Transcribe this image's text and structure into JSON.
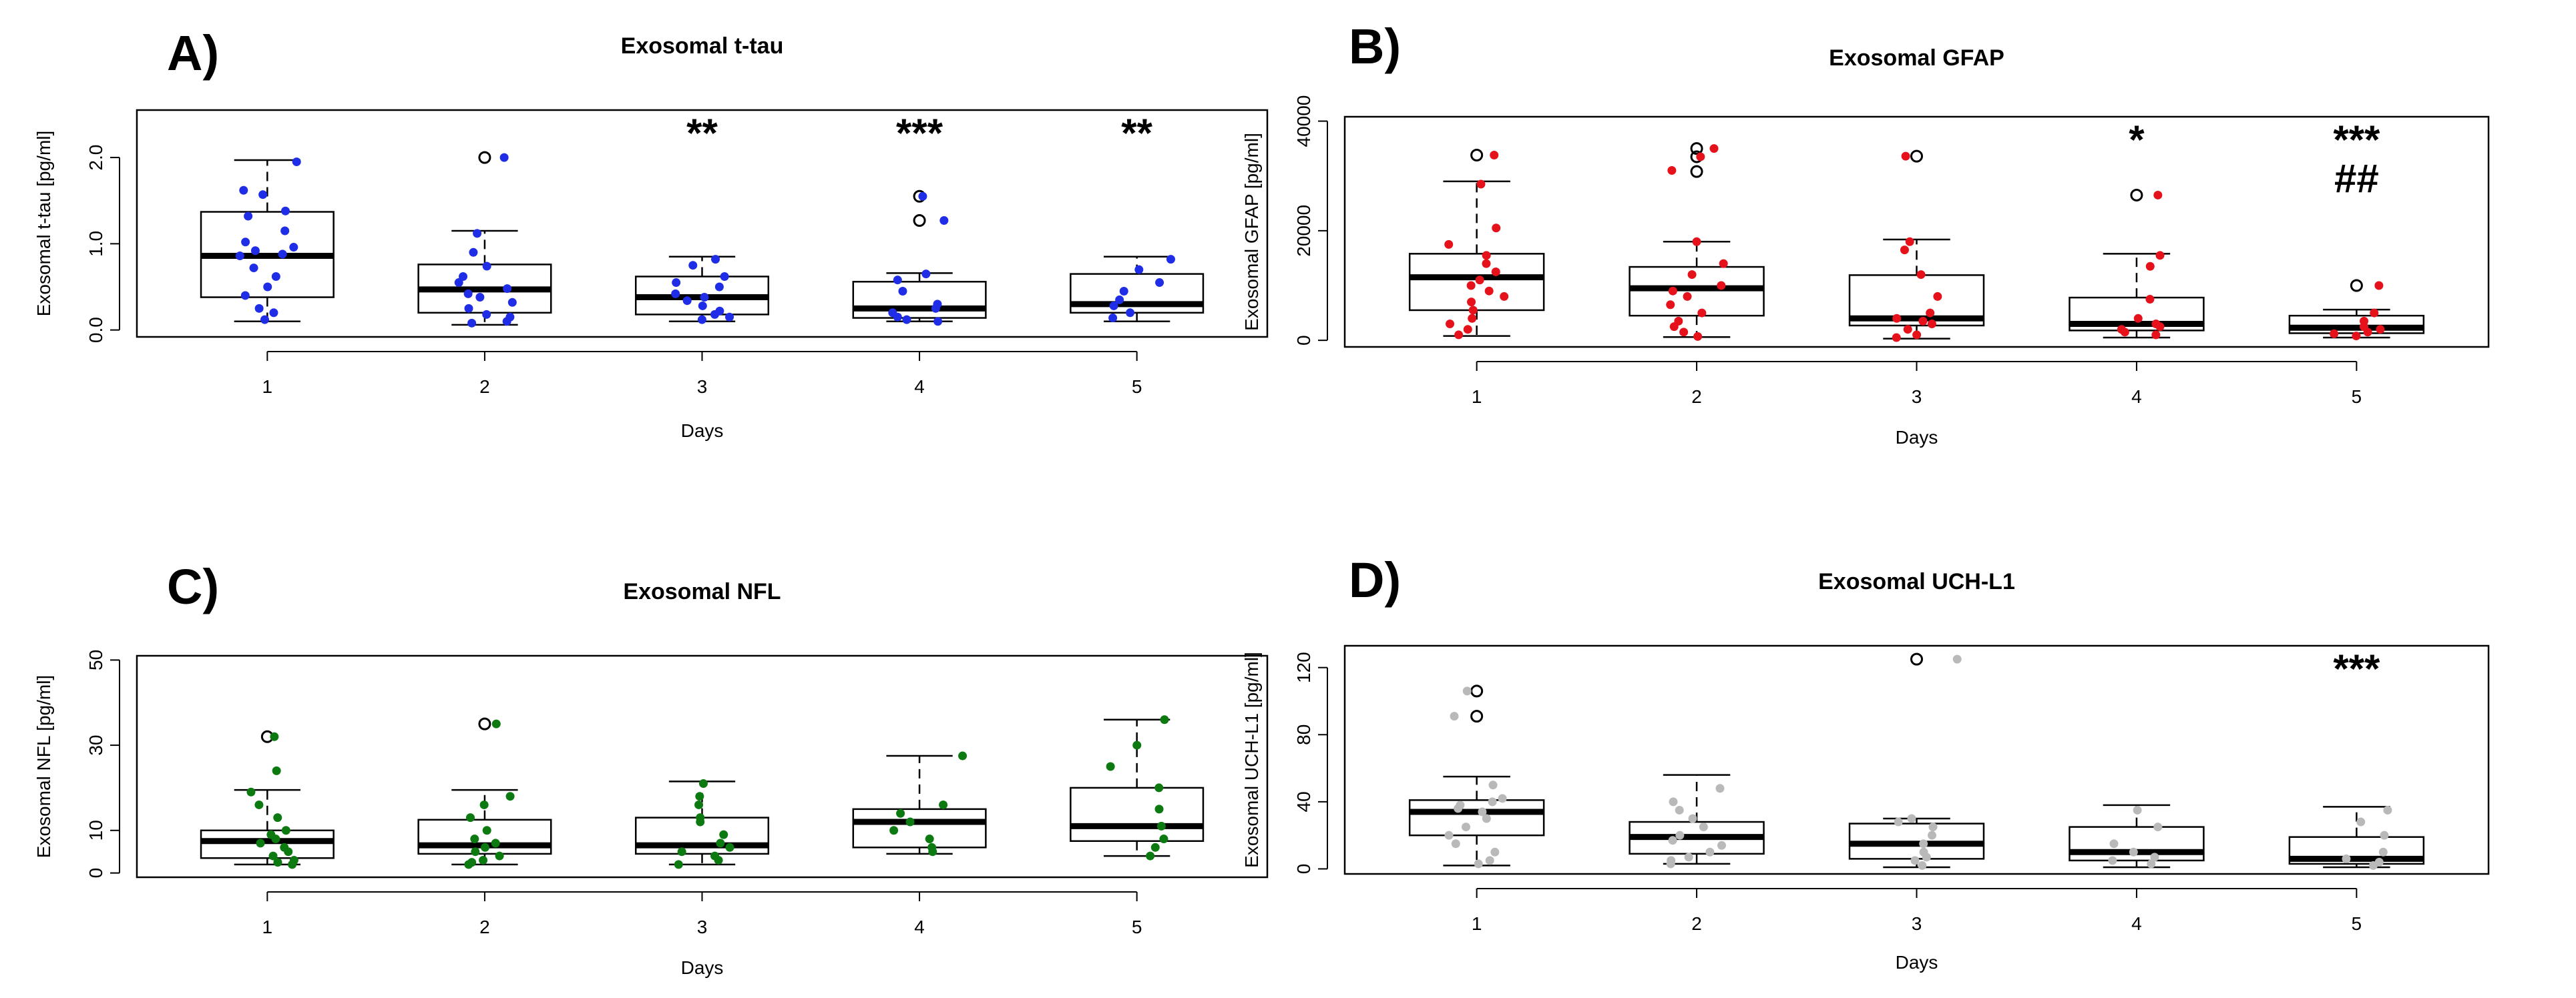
{
  "chart_data": [
    {
      "type": "box",
      "panel_label": "A)",
      "title": "Exosomal t-tau",
      "xlabel": "Days",
      "ylabel": "Exosomal t-tau [pg/ml]",
      "categories": [
        "1",
        "2",
        "3",
        "4",
        "5"
      ],
      "ylim": [
        -0.08,
        2.55
      ],
      "yticks": [
        0,
        1,
        2
      ],
      "ytick_labels": [
        "0.0",
        "1.0",
        "2.0"
      ],
      "point_color": "#1f2ee6",
      "boxes": [
        {
          "whisker_low": 0.1,
          "q1": 0.38,
          "median": 0.86,
          "q3": 1.37,
          "whisker_high": 1.97,
          "outliers": []
        },
        {
          "whisker_low": 0.06,
          "q1": 0.2,
          "median": 0.47,
          "q3": 0.76,
          "whisker_high": 1.15,
          "outliers": [
            2.0
          ]
        },
        {
          "whisker_low": 0.1,
          "q1": 0.18,
          "median": 0.38,
          "q3": 0.62,
          "whisker_high": 0.85,
          "outliers": []
        },
        {
          "whisker_low": 0.1,
          "q1": 0.14,
          "median": 0.25,
          "q3": 0.56,
          "whisker_high": 0.66,
          "outliers": [
            1.27,
            1.55
          ]
        },
        {
          "whisker_low": 0.1,
          "q1": 0.2,
          "median": 0.3,
          "q3": 0.65,
          "whisker_high": 0.85,
          "outliers": []
        }
      ],
      "points": [
        [
          1.95,
          1.62,
          1.57,
          1.38,
          1.32,
          1.15,
          1.02,
          0.96,
          0.92,
          0.88,
          0.86,
          0.72,
          0.62,
          0.5,
          0.4,
          0.25,
          0.2,
          0.12
        ],
        [
          2.0,
          1.12,
          0.9,
          0.74,
          0.62,
          0.55,
          0.48,
          0.42,
          0.38,
          0.32,
          0.25,
          0.18,
          0.15,
          0.1,
          0.08
        ],
        [
          0.82,
          0.75,
          0.62,
          0.55,
          0.5,
          0.42,
          0.38,
          0.34,
          0.28,
          0.22,
          0.18,
          0.15,
          0.12
        ],
        [
          1.55,
          1.27,
          0.65,
          0.58,
          0.45,
          0.3,
          0.25,
          0.2,
          0.15,
          0.12,
          0.1
        ],
        [
          0.82,
          0.7,
          0.55,
          0.45,
          0.35,
          0.28,
          0.2,
          0.14
        ]
      ],
      "significance": [
        {
          "category": "3",
          "label": "**"
        },
        {
          "category": "4",
          "label": "***"
        },
        {
          "category": "5",
          "label": "**"
        }
      ]
    },
    {
      "type": "box",
      "panel_label": "B)",
      "title": "Exosomal GFAP",
      "xlabel": "Days",
      "ylabel": "Exosomal GFAP [pg/ml]",
      "categories": [
        "1",
        "2",
        "3",
        "4",
        "5"
      ],
      "ylim": [
        -1200,
        40800
      ],
      "yticks": [
        0,
        20000,
        40000
      ],
      "ytick_labels": [
        "0",
        "20000",
        "40000"
      ],
      "point_color": "#e5121b",
      "boxes": [
        {
          "whisker_low": 800,
          "q1": 5500,
          "median": 11500,
          "q3": 15800,
          "whisker_high": 29000,
          "outliers": [
            33800
          ]
        },
        {
          "whisker_low": 600,
          "q1": 4500,
          "median": 9500,
          "q3": 13400,
          "whisker_high": 18000,
          "outliers": [
            30800,
            33500,
            35000
          ]
        },
        {
          "whisker_low": 300,
          "q1": 2700,
          "median": 4000,
          "q3": 11900,
          "whisker_high": 18400,
          "outliers": [
            33600
          ]
        },
        {
          "whisker_low": 500,
          "q1": 1800,
          "median": 3000,
          "q3": 7800,
          "whisker_high": 15800,
          "outliers": [
            26500
          ]
        },
        {
          "whisker_low": 500,
          "q1": 1300,
          "median": 2300,
          "q3": 4500,
          "whisker_high": 5600,
          "outliers": [
            10000
          ]
        }
      ],
      "points": [
        [
          33800,
          28500,
          20500,
          17500,
          15500,
          14000,
          12500,
          11000,
          10000,
          9000,
          8000,
          7000,
          5500,
          4000,
          3000,
          2000,
          1000
        ],
        [
          35000,
          33500,
          31000,
          18000,
          14000,
          12000,
          10000,
          9000,
          8000,
          6500,
          5000,
          3500,
          2500,
          1500,
          700
        ],
        [
          33600,
          18000,
          16500,
          12000,
          8000,
          5000,
          4000,
          3500,
          3000,
          2000,
          1000,
          500
        ],
        [
          26500,
          15500,
          13500,
          7500,
          4000,
          3000,
          2500,
          2000,
          1500,
          1000
        ],
        [
          10000,
          5000,
          3500,
          2500,
          2000,
          1500,
          1200,
          800
        ]
      ],
      "significance": [
        {
          "category": "4",
          "label": "*"
        },
        {
          "category": "5",
          "label": "***"
        },
        {
          "category": "5",
          "label": "##"
        }
      ]
    },
    {
      "type": "box",
      "panel_label": "C)",
      "title": "Exosomal NFL",
      "xlabel": "Days",
      "ylabel": "Exosomal NFL [pg/ml]",
      "categories": [
        "1",
        "2",
        "3",
        "4",
        "5"
      ],
      "ylim": [
        -1,
        51
      ],
      "yticks": [
        0,
        10,
        30,
        50
      ],
      "ytick_labels": [
        "0",
        "10",
        "30",
        "50"
      ],
      "point_color": "#0c7a10",
      "boxes": [
        {
          "whisker_low": 2,
          "q1": 3.5,
          "median": 7.5,
          "q3": 10,
          "whisker_high": 19.5,
          "outliers": [
            32
          ]
        },
        {
          "whisker_low": 2,
          "q1": 4.5,
          "median": 6.5,
          "q3": 12.5,
          "whisker_high": 19.5,
          "outliers": [
            35
          ]
        },
        {
          "whisker_low": 2,
          "q1": 4.5,
          "median": 6.5,
          "q3": 13,
          "whisker_high": 21.5,
          "outliers": []
        },
        {
          "whisker_low": 4.5,
          "q1": 6,
          "median": 12,
          "q3": 15,
          "whisker_high": 27.5,
          "outliers": []
        },
        {
          "whisker_low": 4,
          "q1": 7.5,
          "median": 11,
          "q3": 20,
          "whisker_high": 36,
          "outliers": []
        }
      ],
      "points": [
        [
          32,
          24,
          19,
          16,
          13,
          10,
          9,
          8,
          7,
          6,
          5,
          4,
          3,
          2.5,
          2
        ],
        [
          35,
          18,
          16,
          13,
          10,
          8,
          7,
          6,
          5,
          4,
          3,
          2.5,
          2
        ],
        [
          21,
          18,
          16,
          13,
          12,
          9,
          7,
          6,
          5,
          4,
          3,
          2
        ],
        [
          27.5,
          16,
          14,
          12,
          10,
          8,
          6,
          5
        ],
        [
          36,
          30,
          25,
          20,
          15,
          11,
          8,
          6,
          4
        ]
      ],
      "significance": []
    },
    {
      "type": "box",
      "panel_label": "D)",
      "title": "Exosomal UCH-L1",
      "xlabel": "Days",
      "ylabel": "Exosomal UCH-L1 [pg/ml]",
      "categories": [
        "1",
        "2",
        "3",
        "4",
        "5"
      ],
      "ylim": [
        -3,
        133
      ],
      "yticks": [
        0,
        40,
        80,
        120
      ],
      "ytick_labels": [
        "0",
        "40",
        "80",
        "120"
      ],
      "point_color": "#b9b9b9",
      "boxes": [
        {
          "whisker_low": 2,
          "q1": 20,
          "median": 34,
          "q3": 41,
          "whisker_high": 55,
          "outliers": [
            91,
            106
          ]
        },
        {
          "whisker_low": 3,
          "q1": 9,
          "median": 19,
          "q3": 28,
          "whisker_high": 56,
          "outliers": []
        },
        {
          "whisker_low": 1,
          "q1": 6,
          "median": 15,
          "q3": 27,
          "whisker_high": 30,
          "outliers": [
            125
          ]
        },
        {
          "whisker_low": 1,
          "q1": 5,
          "median": 10,
          "q3": 25,
          "whisker_high": 38,
          "outliers": []
        },
        {
          "whisker_low": 1,
          "q1": 3,
          "median": 6,
          "q3": 19,
          "whisker_high": 37,
          "outliers": []
        }
      ],
      "points": [
        [
          106,
          91,
          50,
          42,
          40,
          38,
          36,
          34,
          30,
          25,
          20,
          15,
          10,
          5,
          3
        ],
        [
          48,
          40,
          35,
          30,
          25,
          20,
          17,
          14,
          10,
          7,
          5,
          3
        ],
        [
          125,
          30,
          28,
          25,
          20,
          15,
          10,
          7,
          5,
          2
        ],
        [
          35,
          25,
          15,
          10,
          7,
          5,
          3
        ],
        [
          35,
          28,
          20,
          10,
          6,
          4,
          2
        ]
      ],
      "significance": [
        {
          "category": "5",
          "label": "***"
        }
      ]
    }
  ]
}
